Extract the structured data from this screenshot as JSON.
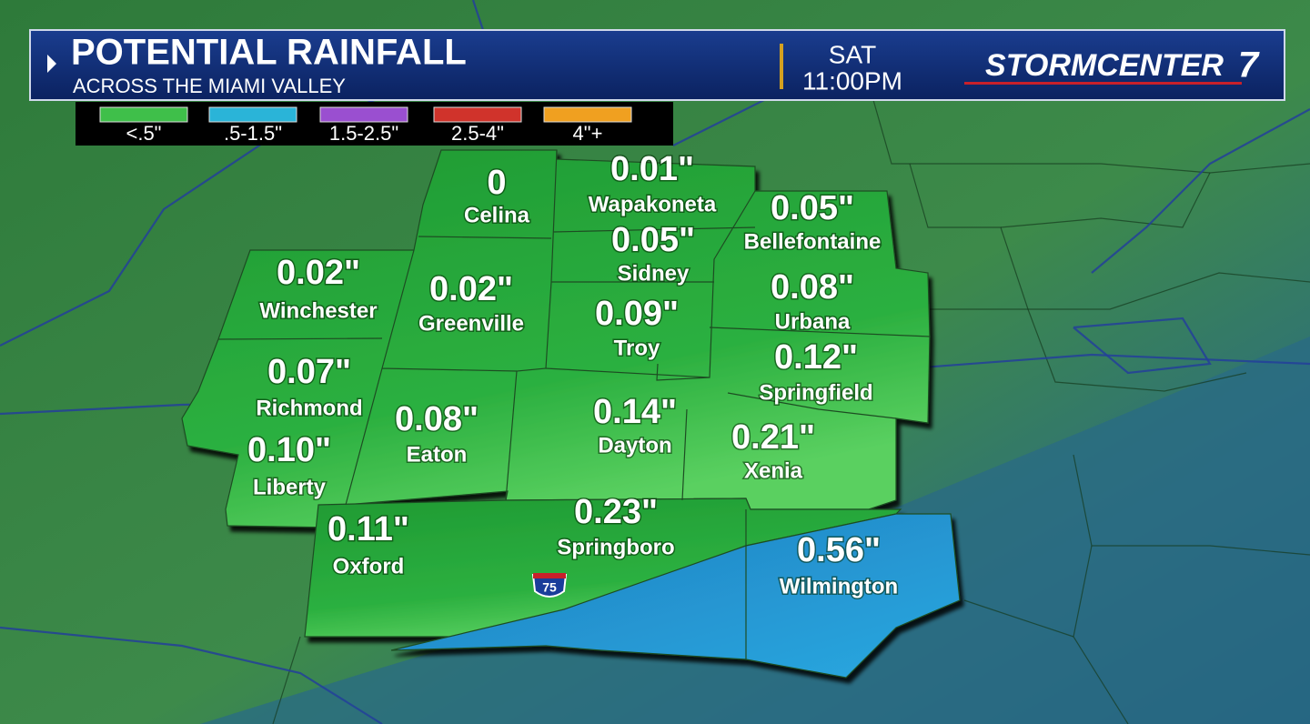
{
  "header": {
    "title": "POTENTIAL RAINFALL",
    "subtitle": "ACROSS THE MIAMI VALLEY",
    "day": "SAT",
    "time": "11:00PM",
    "logo": "STORMCENTER",
    "logo_number": "7"
  },
  "legend": [
    {
      "label": "<.5\"",
      "color": "#3fbf4a"
    },
    {
      "label": ".5-1.5\"",
      "color": "#2ab4d8"
    },
    {
      "label": "1.5-2.5\"",
      "color": "#9a4fd0"
    },
    {
      "label": "2.5-4\"",
      "color": "#d0332b"
    },
    {
      "label": "4\"+",
      "color": "#f0a020"
    }
  ],
  "locations": [
    {
      "value": "0",
      "name": "Celina"
    },
    {
      "value": "0.01\"",
      "name": "Wapakoneta"
    },
    {
      "value": "0.05\"",
      "name": "Bellefontaine"
    },
    {
      "value": "0.05\"",
      "name": "Sidney"
    },
    {
      "value": "0.02\"",
      "name": "Winchester"
    },
    {
      "value": "0.02\"",
      "name": "Greenville"
    },
    {
      "value": "0.09\"",
      "name": "Troy"
    },
    {
      "value": "0.08\"",
      "name": "Urbana"
    },
    {
      "value": "0.12\"",
      "name": "Springfield"
    },
    {
      "value": "0.07\"",
      "name": "Richmond"
    },
    {
      "value": "0.08\"",
      "name": "Eaton"
    },
    {
      "value": "0.14\"",
      "name": "Dayton"
    },
    {
      "value": "0.21\"",
      "name": "Xenia"
    },
    {
      "value": "0.10\"",
      "name": "Liberty"
    },
    {
      "value": "0.11\"",
      "name": "Oxford"
    },
    {
      "value": "0.23\"",
      "name": "Springboro"
    },
    {
      "value": "0.56\"",
      "name": "Wilmington"
    }
  ],
  "highway_shield": "75"
}
